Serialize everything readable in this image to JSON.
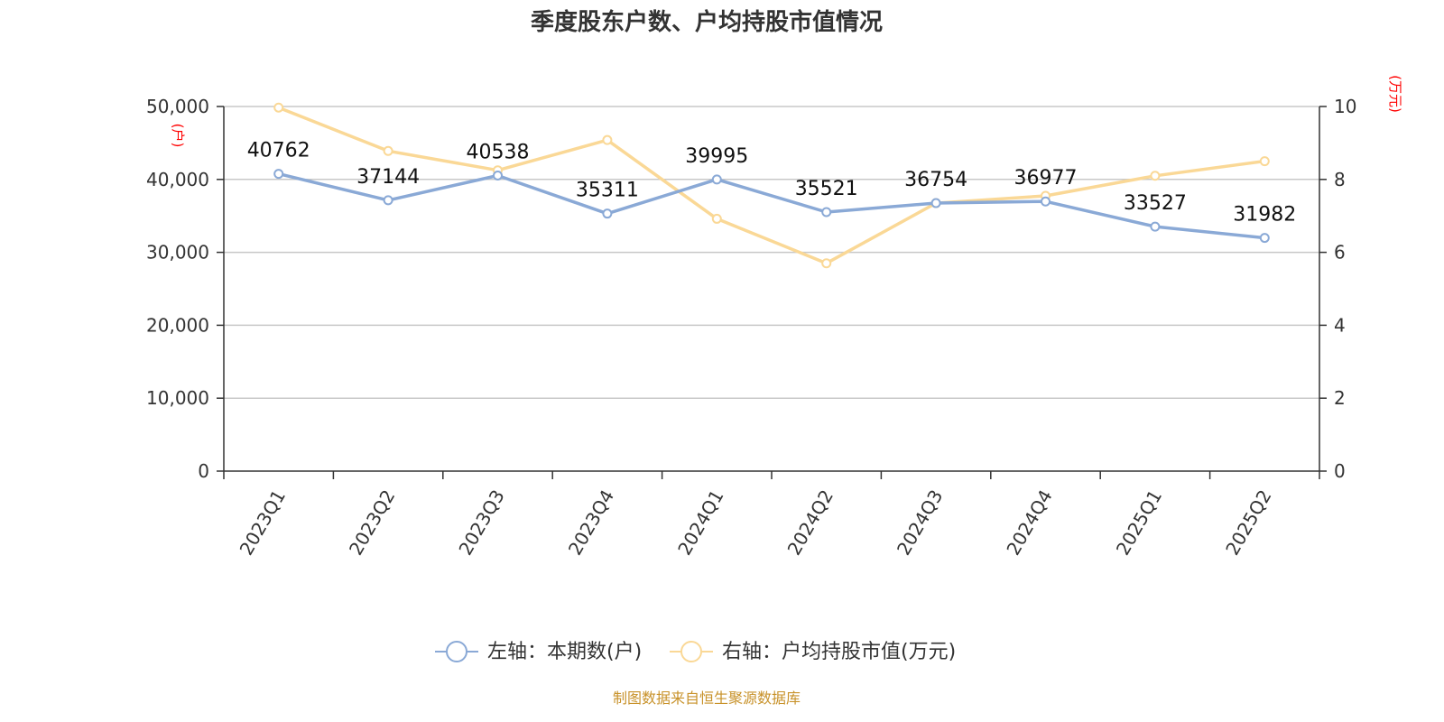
{
  "chart_data": {
    "type": "line",
    "title": "季度股东户数、户均持股市值情况",
    "categories": [
      "2023Q1",
      "2023Q2",
      "2023Q3",
      "2023Q4",
      "2024Q1",
      "2024Q2",
      "2024Q3",
      "2024Q4",
      "2025Q1",
      "2025Q2"
    ],
    "left_axis": {
      "unit": "(户)",
      "ylim": [
        0,
        50000
      ],
      "ticks": [
        "0",
        "10,000",
        "20,000",
        "30,000",
        "40,000",
        "50,000"
      ],
      "tick_values": [
        0,
        10000,
        20000,
        30000,
        40000,
        50000
      ]
    },
    "right_axis": {
      "unit": "(万元)",
      "ylim": [
        0,
        10
      ],
      "ticks": [
        "0",
        "2",
        "4",
        "6",
        "8",
        "10"
      ],
      "tick_values": [
        0,
        2,
        4,
        6,
        8,
        10
      ]
    },
    "series": [
      {
        "name": "左轴：本期数(户)",
        "axis": "left",
        "color": "#8aa9d6",
        "values": [
          40762,
          37144,
          40538,
          35311,
          39995,
          35521,
          36754,
          36977,
          33527,
          31982
        ],
        "labels": [
          "40762",
          "37144",
          "40538",
          "35311",
          "39995",
          "35521",
          "36754",
          "36977",
          "33527",
          "31982"
        ]
      },
      {
        "name": "右轴：户均持股市值(万元)",
        "axis": "right",
        "color": "#fad896",
        "values": [
          9.97,
          8.78,
          8.25,
          9.08,
          6.92,
          5.7,
          7.35,
          7.55,
          8.1,
          8.5
        ]
      }
    ],
    "grid": true,
    "legend_position": "bottom",
    "unit_color": "#ff0000"
  },
  "footer": {
    "source": "制图数据来自恒生聚源数据库",
    "color": "#c8922a"
  }
}
